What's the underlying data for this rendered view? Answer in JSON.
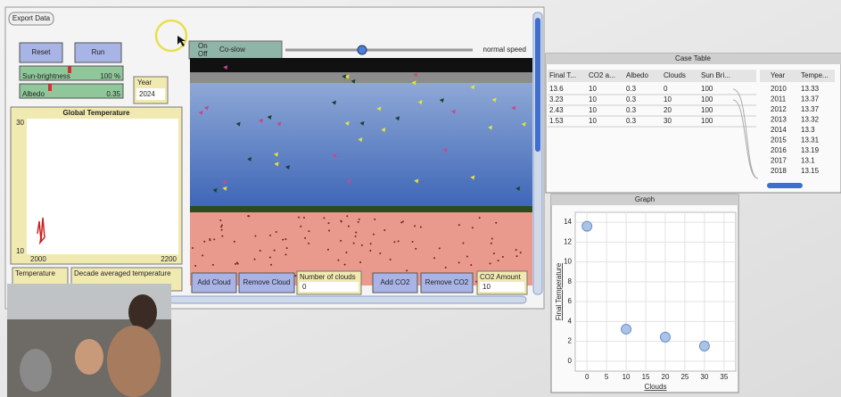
{
  "netlogo": {
    "export_button": "Export Data",
    "reset_button": "Reset",
    "run_button": "Run",
    "sliders": [
      {
        "label": "Sun-brightness",
        "value": "100 %"
      },
      {
        "label": "Albedo",
        "value": "0.35"
      }
    ],
    "year": {
      "label": "Year",
      "value": "2024"
    },
    "plot": {
      "title": "Global Temperature",
      "y_max": "30",
      "y_min": "10",
      "x_min": "2000",
      "x_max": "2200"
    },
    "monitors": [
      "Temperature",
      "Decade averaged temperature"
    ],
    "speed": {
      "on": "On",
      "off": "Off",
      "tooltip": "Co-slow",
      "label": "normal speed"
    },
    "buttons": [
      "Add Cloud",
      "Remove Cloud",
      "Add CO2",
      "Remove CO2"
    ],
    "clouds_monitor": {
      "label": "Number of clouds",
      "value": "0"
    },
    "co2_monitor": {
      "label": "CO2 Amount",
      "value": "10"
    }
  },
  "case_table": {
    "title": "Case Table",
    "columns": [
      "Final T...",
      "CO2 a...",
      "Albedo",
      "Clouds",
      "Sun Bri..."
    ],
    "rows": [
      [
        "13.6",
        "10",
        "0.3",
        "0",
        "100"
      ],
      [
        "3.23",
        "10",
        "0.3",
        "10",
        "100"
      ],
      [
        "2.43",
        "10",
        "0.3",
        "20",
        "100"
      ],
      [
        "1.53",
        "10",
        "0.3",
        "30",
        "100"
      ]
    ],
    "year_columns": [
      "Year",
      "Tempe..."
    ],
    "year_rows": [
      [
        "2010",
        "13.33"
      ],
      [
        "2011",
        "13.37"
      ],
      [
        "2012",
        "13.37"
      ],
      [
        "2013",
        "13.32"
      ],
      [
        "2014",
        "13.3"
      ],
      [
        "2015",
        "13.31"
      ],
      [
        "2016",
        "13.19"
      ],
      [
        "2017",
        "13.1"
      ],
      [
        "2018",
        "13.15"
      ]
    ]
  },
  "chart_data": {
    "type": "scatter",
    "title": "Graph",
    "xlabel": "Clouds",
    "ylabel": "Final Temperature",
    "x": [
      0,
      10,
      20,
      30
    ],
    "values": [
      13.6,
      3.23,
      2.43,
      1.53
    ],
    "color": "#a9c4e8",
    "xlim": [
      -3,
      38
    ],
    "ylim": [
      -1,
      15
    ],
    "xticks": [
      0,
      5,
      10,
      15,
      20,
      25,
      30,
      35
    ],
    "yticks": [
      0,
      2,
      4,
      6,
      8,
      10,
      12,
      14
    ],
    "grid": true
  }
}
